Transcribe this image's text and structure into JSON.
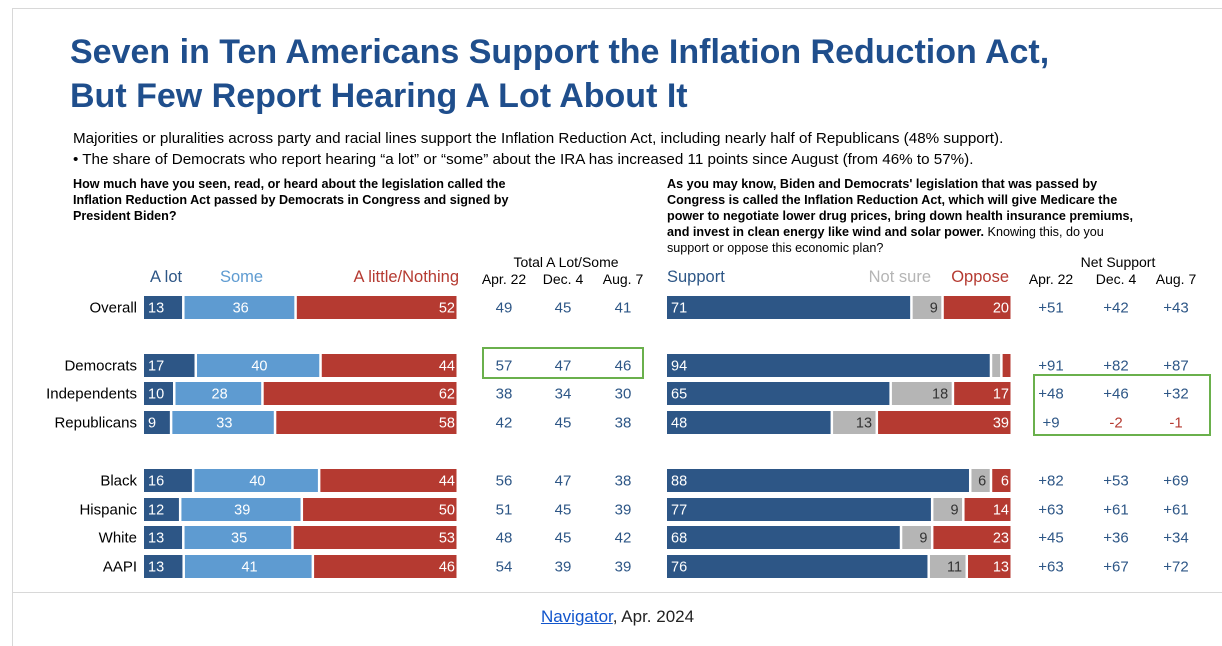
{
  "headline": {
    "line1": "Seven in Ten Americans Support the Inflation Reduction Act,",
    "line2": "But Few Report Hearing A Lot About It"
  },
  "subhead": "Majorities or pluralities across party and racial lines support the Inflation Reduction Act, including nearly half of Republicans (48% support).",
  "bullet": "•   The share of Democrats who report hearing “a lot” or “some” about the IRA has increased 11 points since August (from 46% to 57%).",
  "question_left": [
    "How much have you seen, read, or heard about the legislation called the",
    "Inflation Reduction Act passed by Democrats in Congress and signed by",
    "President Biden?"
  ],
  "question_right": [
    {
      "bold": "As you may know, Biden and Democrats' legislation that was passed by",
      "normal": ""
    },
    {
      "bold": "Congress is called the Inflation Reduction Act, which will give Medicare the",
      "normal": ""
    },
    {
      "bold": "power to negotiate lower drug prices, bring down health insurance premiums,",
      "normal": ""
    },
    {
      "bold": "and invest in clean energy like wind and solar power.",
      "normal": " Knowing this, do you"
    },
    {
      "bold": "",
      "normal": "support or oppose this economic plan?"
    }
  ],
  "footer": {
    "link": "Navigator",
    "rest": ", Apr. 2024"
  },
  "colors": {
    "title": "#1f4e8c",
    "dark_blue": "#2d5686",
    "light_blue": "#5e9bd1",
    "red": "#b53a31",
    "gray": "#b5b5b5",
    "highlight": "#6ab04c",
    "text": "#222222"
  },
  "chart_data": {
    "type": "bar",
    "categories": [
      "Overall",
      "Democrats",
      "Independents",
      "Republicans",
      "Black",
      "Hispanic",
      "White",
      "AAPI"
    ],
    "heard": {
      "legend": [
        "A lot",
        "Some",
        "A little/Nothing"
      ],
      "series": [
        {
          "name": "A lot",
          "values": [
            13,
            17,
            10,
            9,
            16,
            12,
            13,
            13
          ]
        },
        {
          "name": "Some",
          "values": [
            36,
            40,
            28,
            33,
            40,
            39,
            35,
            41
          ]
        },
        {
          "name": "A little/Nothing",
          "values": [
            52,
            44,
            62,
            58,
            44,
            50,
            53,
            46
          ]
        }
      ]
    },
    "total_a_lot_some": {
      "title": "Total A Lot/Some",
      "columns": [
        "Apr. 22",
        "Dec. 4",
        "Aug. 7"
      ],
      "rows": [
        [
          49,
          45,
          41
        ],
        [
          57,
          47,
          46
        ],
        [
          38,
          34,
          30
        ],
        [
          42,
          45,
          38
        ],
        [
          56,
          47,
          38
        ],
        [
          51,
          45,
          39
        ],
        [
          48,
          45,
          42
        ],
        [
          54,
          39,
          39
        ]
      ]
    },
    "support": {
      "legend": [
        "Support",
        "Not sure",
        "Oppose"
      ],
      "series": [
        {
          "name": "Support",
          "values": [
            71,
            94,
            65,
            48,
            88,
            77,
            68,
            76
          ]
        },
        {
          "name": "Not sure",
          "values": [
            9,
            3,
            18,
            13,
            6,
            9,
            9,
            11
          ]
        },
        {
          "name": "Oppose",
          "values": [
            20,
            3,
            17,
            39,
            6,
            14,
            23,
            13
          ]
        }
      ],
      "labels_hidden": [
        [
          false,
          false,
          false
        ],
        [
          false,
          true,
          true
        ],
        [
          false,
          false,
          false
        ],
        [
          false,
          false,
          false
        ],
        [
          false,
          false,
          false
        ],
        [
          false,
          false,
          false
        ],
        [
          false,
          false,
          false
        ],
        [
          false,
          false,
          false
        ]
      ]
    },
    "net_support": {
      "title": "Net Support",
      "columns": [
        "Apr. 22",
        "Dec. 4",
        "Aug. 7"
      ],
      "rows": [
        [
          "+51",
          "+42",
          "+43"
        ],
        [
          "+91",
          "+82",
          "+87"
        ],
        [
          "+48",
          "+46",
          "+32"
        ],
        [
          "+9",
          "-2",
          "-1"
        ],
        [
          "+82",
          "+53",
          "+69"
        ],
        [
          "+63",
          "+61",
          "+61"
        ],
        [
          "+45",
          "+36",
          "+34"
        ],
        [
          "+63",
          "+67",
          "+72"
        ]
      ]
    },
    "highlights": [
      "Democrats total A lot/Some",
      "Independents and Republicans net support"
    ]
  }
}
